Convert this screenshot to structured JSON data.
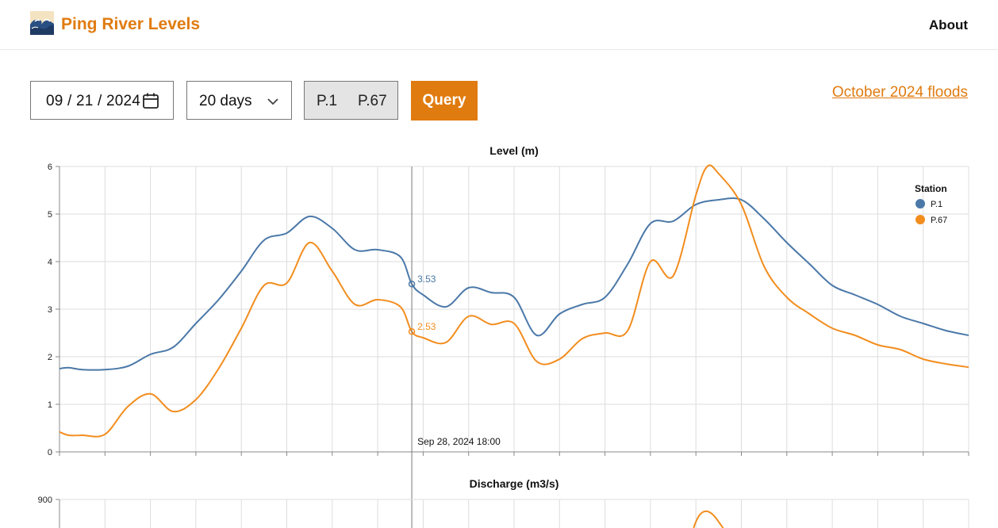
{
  "header": {
    "brand": "Ping River Levels",
    "about": "About"
  },
  "controls": {
    "date": "09/21/2024",
    "date_parts": [
      "09",
      "21",
      "2024"
    ],
    "range": "20 days",
    "stations": [
      "P.1",
      "P.67"
    ],
    "query": "Query",
    "link": "October 2024 floods"
  },
  "colors": {
    "accent": "#e07b10",
    "p1": "#4a78a8",
    "p67": "#f28d1e"
  },
  "chart_data": [
    {
      "type": "line",
      "title": "Level (m)",
      "ylim": [
        0,
        6
      ],
      "yticks": [
        "0",
        "1",
        "2",
        "3",
        "4",
        "5",
        "6"
      ],
      "x_range": [
        "Sep 21, 2024",
        "Oct 11, 2024"
      ],
      "grid": true,
      "legend": {
        "title": "Station",
        "position": "top-right"
      },
      "cursor": {
        "label": "Sep 28, 2024 18:00",
        "day": 7.75,
        "values": [
          "3.53",
          "2.53"
        ]
      },
      "series": [
        {
          "name": "P.1",
          "x": [
            0,
            0.2,
            0.5,
            1,
            1.5,
            2,
            2.5,
            3,
            3.5,
            4,
            4.5,
            5,
            5.5,
            6,
            6.5,
            7,
            7.5,
            7.75,
            8,
            8.5,
            9,
            9.5,
            10,
            10.5,
            11,
            11.5,
            12,
            12.5,
            13,
            13.5,
            14,
            14.5,
            15,
            15.5,
            16,
            16.5,
            17,
            17.5,
            18,
            18.5,
            19,
            19.5,
            20
          ],
          "y": [
            1.75,
            1.77,
            1.73,
            1.73,
            1.8,
            2.05,
            2.2,
            2.7,
            3.2,
            3.8,
            4.45,
            4.6,
            4.95,
            4.7,
            4.25,
            4.25,
            4.1,
            3.53,
            3.3,
            3.05,
            3.45,
            3.35,
            3.25,
            2.45,
            2.9,
            3.1,
            3.25,
            3.95,
            4.8,
            4.85,
            5.2,
            5.3,
            5.3,
            4.9,
            4.4,
            3.95,
            3.5,
            3.3,
            3.1,
            2.85,
            2.7,
            2.55,
            2.45
          ]
        },
        {
          "name": "P.67",
          "x": [
            0,
            0.2,
            0.5,
            1,
            1.5,
            2,
            2.5,
            3,
            3.5,
            4,
            4.5,
            5,
            5.5,
            6,
            6.5,
            7,
            7.5,
            7.75,
            8,
            8.5,
            9,
            9.5,
            10,
            10.5,
            11,
            11.5,
            12,
            12.5,
            13,
            13.5,
            14,
            14.25,
            14.5,
            15,
            15.5,
            16,
            16.5,
            17,
            17.5,
            18,
            18.5,
            19,
            19.5,
            20
          ],
          "y": [
            0.42,
            0.35,
            0.35,
            0.37,
            0.95,
            1.22,
            0.85,
            1.1,
            1.75,
            2.6,
            3.5,
            3.55,
            4.4,
            3.8,
            3.1,
            3.2,
            3.05,
            2.53,
            2.4,
            2.3,
            2.85,
            2.68,
            2.7,
            1.9,
            1.95,
            2.38,
            2.5,
            2.55,
            4.0,
            3.7,
            5.4,
            6.0,
            5.85,
            5.2,
            3.9,
            3.25,
            2.9,
            2.6,
            2.45,
            2.25,
            2.15,
            1.95,
            1.85,
            1.78
          ]
        }
      ]
    },
    {
      "type": "line",
      "title": "Discharge (m3/s)",
      "yticks": [
        "900"
      ]
    }
  ]
}
